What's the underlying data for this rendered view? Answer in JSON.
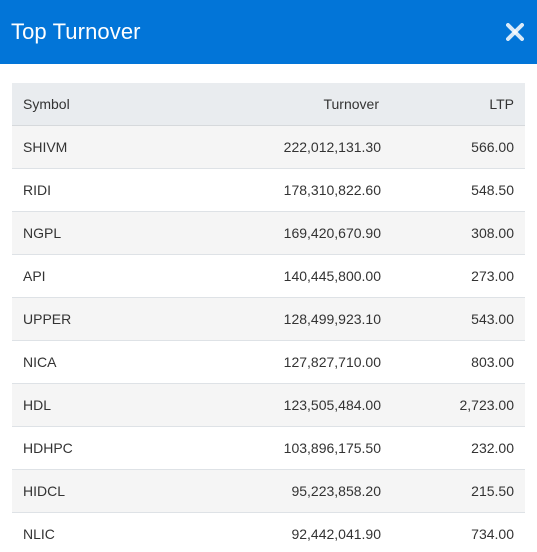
{
  "dialog": {
    "title": "Top Turnover",
    "close_icon": "close-icon"
  },
  "table": {
    "headers": {
      "symbol": "Symbol",
      "turnover": "Turnover",
      "ltp": "LTP"
    },
    "rows": [
      {
        "symbol": "SHIVM",
        "turnover": "222,012,131.30",
        "ltp": "566.00"
      },
      {
        "symbol": "RIDI",
        "turnover": "178,310,822.60",
        "ltp": "548.50"
      },
      {
        "symbol": "NGPL",
        "turnover": "169,420,670.90",
        "ltp": "308.00"
      },
      {
        "symbol": "API",
        "turnover": "140,445,800.00",
        "ltp": "273.00"
      },
      {
        "symbol": "UPPER",
        "turnover": "128,499,923.10",
        "ltp": "543.00"
      },
      {
        "symbol": "NICA",
        "turnover": "127,827,710.00",
        "ltp": "803.00"
      },
      {
        "symbol": "HDL",
        "turnover": "123,505,484.00",
        "ltp": "2,723.00"
      },
      {
        "symbol": "HDHPC",
        "turnover": "103,896,175.50",
        "ltp": "232.00"
      },
      {
        "symbol": "HIDCL",
        "turnover": "95,223,858.20",
        "ltp": "215.50"
      },
      {
        "symbol": "NLIC",
        "turnover": "92,442,041.90",
        "ltp": "734.00"
      }
    ]
  },
  "colors": {
    "header_bg": "#0275d8",
    "table_head_bg": "#e9ecef",
    "stripe_bg": "#f5f5f5"
  }
}
